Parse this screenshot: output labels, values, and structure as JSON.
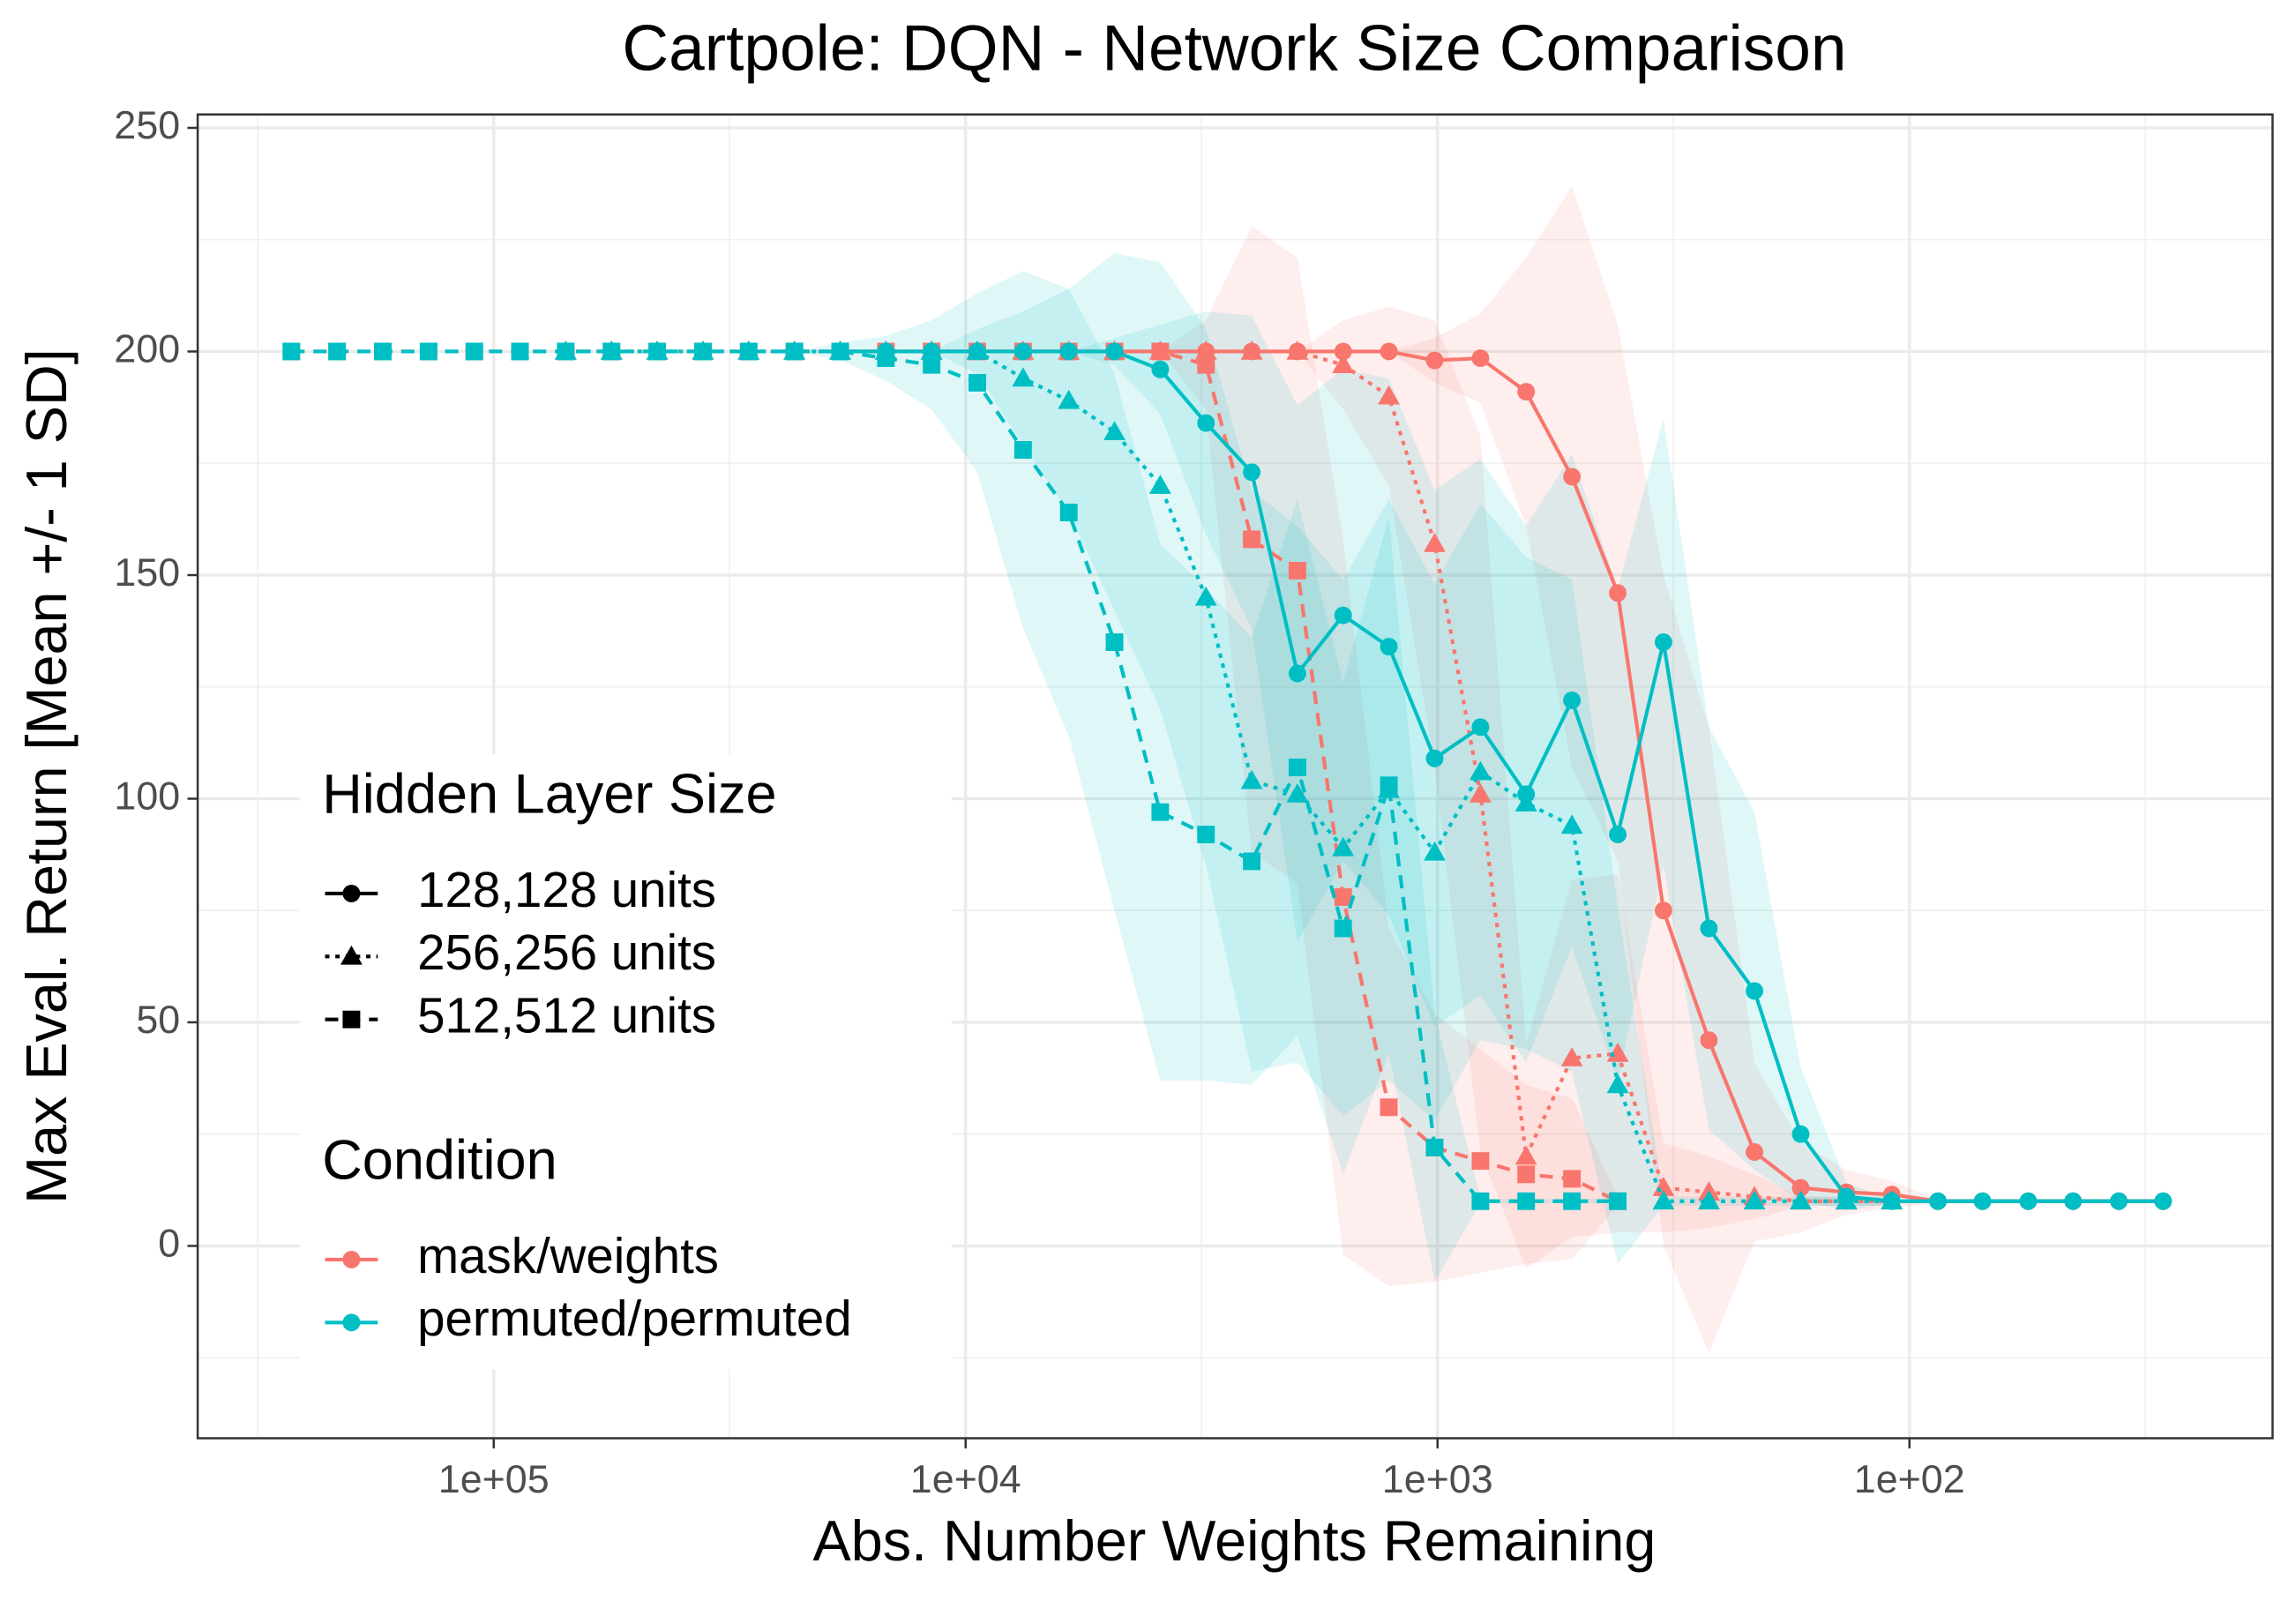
{
  "chart_data": {
    "type": "line",
    "title": "Cartpole: DQN - Network Size Comparison",
    "x_label": "Abs. Number Weights Remaining",
    "y_label": "Max Eval. Return [Mean +/- 1 SD]",
    "xscale": "log",
    "grid": true,
    "legend_position": "left",
    "size_title": "Hidden Layer Size",
    "sizes": [
      {
        "name": "128,128 units",
        "shape": "circle",
        "dash": "solid"
      },
      {
        "name": "256,256 units",
        "shape": "triangle",
        "dash": "dotted"
      },
      {
        "name": "512,512 units",
        "shape": "square",
        "dash": "dashed"
      }
    ],
    "condition_title": "Condition",
    "xlim": [
      424000,
      17
    ],
    "ylim": [
      -43,
      253
    ],
    "xticks": [
      {
        "value": 100000,
        "label": "1e+05"
      },
      {
        "value": 10000,
        "label": "1e+04"
      },
      {
        "value": 1000,
        "label": "1e+03"
      },
      {
        "value": 100,
        "label": "1e+02"
      }
    ],
    "yticks": [
      0,
      50,
      100,
      150,
      200,
      250
    ],
    "x": [
      268435,
      214748,
      171799,
      137439,
      109951,
      87961,
      70369,
      56295,
      45036,
      36029,
      28823,
      23058,
      18447,
      14757,
      11806,
      9445,
      7556,
      6045,
      4836,
      3869,
      3095,
      2476,
      1981,
      1585,
      1268,
      1014,
      811,
      649,
      519,
      415,
      332,
      266,
      213,
      170,
      136,
      109,
      87,
      70,
      56,
      45,
      36,
      29
    ],
    "series": [
      {
        "name": "mask/weights",
        "color": "#F8766D",
        "groups": [
          {
            "values": [
              null,
              null,
              null,
              null,
              null,
              null,
              null,
              null,
              null,
              null,
              null,
              null,
              200,
              200,
              200,
              200,
              200,
              200,
              200,
              200,
              200,
              200,
              200,
              200,
              200,
              198,
              198.5,
              191,
              172,
              146,
              75,
              46,
              21,
              13,
              12,
              11.5,
              10,
              10,
              10,
              10,
              10,
              10
            ],
            "sd": [
              null,
              null,
              null,
              null,
              null,
              null,
              null,
              null,
              null,
              null,
              null,
              null,
              0,
              0,
              0,
              0,
              0,
              0,
              0,
              0,
              0,
              0,
              0,
              0,
              0,
              5,
              10,
              30,
              65,
              60,
              75,
              70,
              20,
              10,
              5,
              3,
              0.5,
              0.5,
              0.5,
              0.5,
              0.5,
              0.5
            ]
          },
          {
            "values": [
              null,
              null,
              null,
              null,
              null,
              null,
              200,
              200,
              200,
              200,
              200,
              200,
              200,
              200,
              200,
              200,
              200,
              200,
              200,
              200,
              200,
              200,
              200,
              197,
              190,
              157,
              101,
              20,
              42,
              43,
              13,
              12,
              11,
              10,
              10,
              10,
              null,
              null,
              null,
              null,
              null,
              null
            ],
            "sd": [
              null,
              null,
              null,
              null,
              null,
              null,
              0,
              0,
              0,
              0,
              0,
              0,
              0,
              0,
              0,
              0,
              0,
              0,
              0,
              0,
              0,
              0,
              0,
              10,
              20,
              50,
              80,
              25,
              40,
              40,
              10,
              8,
              5,
              1,
              1,
              1,
              null,
              null,
              null,
              null,
              null,
              null
            ]
          },
          {
            "values": [
              200,
              200,
              200,
              200,
              200,
              200,
              200,
              200,
              200,
              200,
              200,
              200,
              200,
              200,
              200,
              200,
              200,
              200,
              200,
              200,
              197,
              158,
              151,
              78,
              31,
              22,
              19,
              16,
              15,
              10,
              null,
              null,
              null,
              null,
              null,
              null,
              null,
              null,
              null,
              null,
              null,
              null
            ],
            "sd": [
              0,
              0,
              0,
              0,
              0,
              0,
              0,
              0,
              0,
              0,
              0,
              0,
              0,
              0,
              0,
              0,
              0,
              0,
              0,
              0,
              10,
              70,
              70,
              80,
              40,
              30,
              25,
              20,
              18,
              1,
              null,
              null,
              null,
              null,
              null,
              null,
              null,
              null,
              null,
              null,
              null,
              null
            ]
          }
        ]
      },
      {
        "name": "permuted/permuted",
        "color": "#00BFC4",
        "groups": [
          {
            "values": [
              null,
              null,
              null,
              null,
              null,
              null,
              null,
              null,
              null,
              null,
              null,
              null,
              200,
              200,
              200,
              200,
              200,
              200,
              200,
              196,
              184,
              173,
              128,
              141,
              134,
              109,
              116,
              101,
              122,
              92,
              135,
              71,
              57,
              25,
              11,
              10,
              10,
              10,
              10,
              10,
              10,
              10
            ],
            "sd": [
              null,
              null,
              null,
              null,
              null,
              null,
              null,
              null,
              null,
              null,
              null,
              null,
              0,
              0,
              0,
              0,
              0,
              0,
              3,
              10,
              25,
              35,
              60,
              55,
              60,
              60,
              60,
              60,
              55,
              55,
              50,
              45,
              40,
              15,
              3,
              0.5,
              0.5,
              0.5,
              0.5,
              0.5,
              0.5,
              0.5
            ]
          },
          {
            "values": [
              null,
              null,
              null,
              null,
              null,
              null,
              200,
              200,
              200,
              200,
              200,
              200,
              200,
              200,
              200,
              200,
              194,
              189,
              182,
              170,
              145,
              104,
              101,
              89,
              102,
              88,
              106,
              99,
              94,
              36,
              10,
              10,
              10,
              10,
              10,
              10,
              null,
              null,
              null,
              null,
              null,
              null
            ],
            "sd": [
              null,
              null,
              null,
              null,
              null,
              null,
              0,
              0,
              0,
              0,
              0,
              0,
              0,
              0,
              0,
              5,
              15,
              25,
              40,
              50,
              60,
              65,
              60,
              60,
              65,
              60,
              60,
              55,
              55,
              40,
              1,
              1,
              1,
              1,
              1,
              1,
              null,
              null,
              null,
              null,
              null,
              null
            ]
          },
          {
            "values": [
              200,
              200,
              200,
              200,
              200,
              200,
              200,
              200,
              200,
              200,
              200,
              200,
              200,
              198.5,
              197,
              193,
              178,
              164,
              135,
              97,
              92,
              86,
              107,
              71,
              103,
              22,
              10,
              10,
              10,
              10,
              null,
              null,
              null,
              null,
              null,
              null,
              null,
              null,
              null,
              null,
              null,
              null
            ],
            "sd": [
              0,
              0,
              0,
              0,
              0,
              0,
              0,
              0,
              0,
              0,
              0,
              0,
              2,
              5,
              10,
              20,
              40,
              50,
              60,
              60,
              55,
              50,
              60,
              55,
              60,
              30,
              0.5,
              0.5,
              0.5,
              0.5,
              null,
              null,
              null,
              null,
              null,
              null,
              null,
              null,
              null,
              null,
              null,
              null
            ]
          }
        ]
      }
    ]
  }
}
